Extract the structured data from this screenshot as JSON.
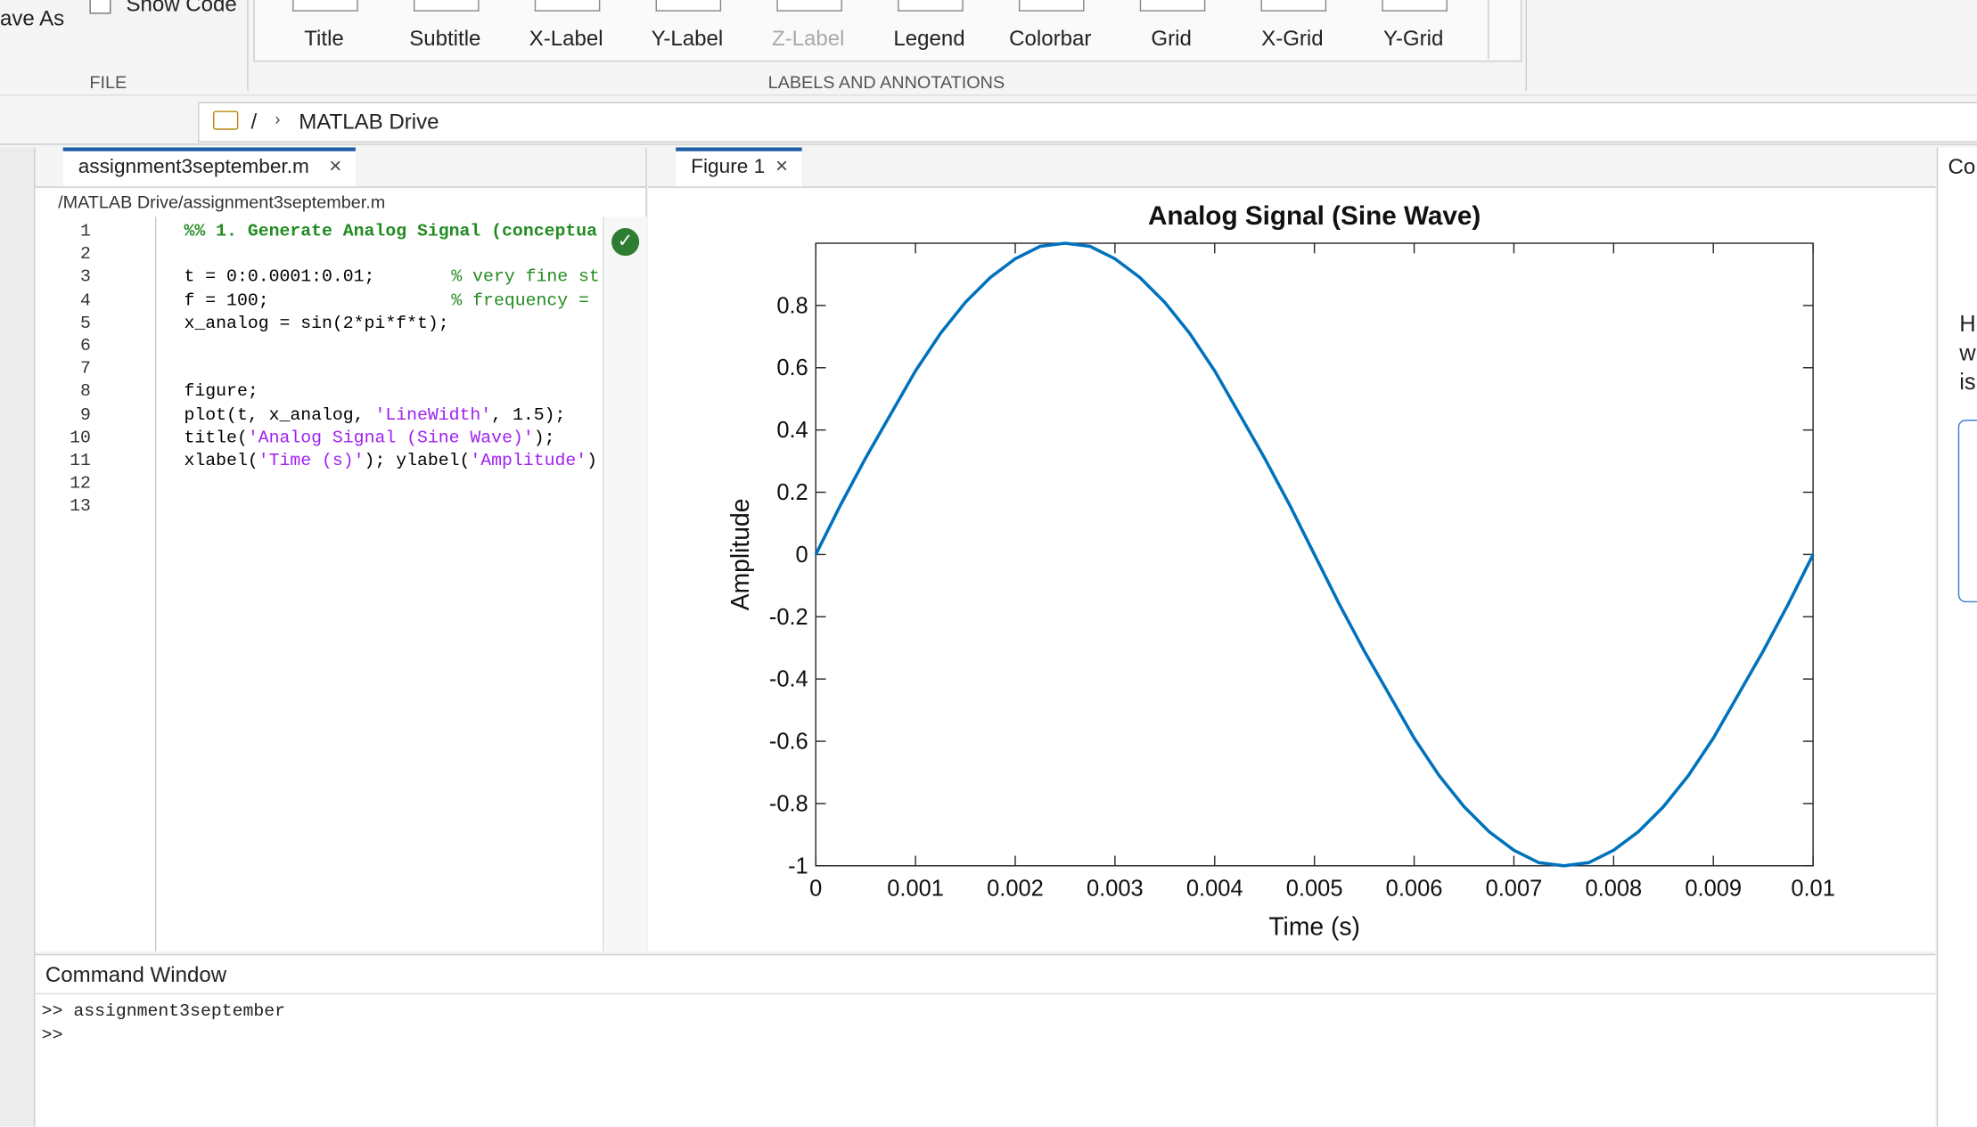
{
  "ribbon": {
    "save_as": "ave As",
    "show_code": "Show Code",
    "file_section": "FILE",
    "buttons": [
      "Title",
      "Subtitle",
      "X-Label",
      "Y-Label",
      "Z-Label",
      "Legend",
      "Colorbar",
      "Grid",
      "X-Grid",
      "Y-Grid"
    ],
    "labels_section": "LABELS AND ANNOTATIONS"
  },
  "address": {
    "separator": "/",
    "folder": "MATLAB Drive"
  },
  "editor": {
    "tab": "assignment3september.m",
    "path": "/MATLAB Drive/assignment3september.m",
    "lines": [
      {
        "n": 1,
        "segments": [
          "%% 1. Generate Analog Signal (conceptua"
        ]
      },
      {
        "n": 2,
        "segments": []
      },
      {
        "n": 3,
        "segments": [
          "t = 0:0.0001:0.01;",
          "% very fine st"
        ]
      },
      {
        "n": 4,
        "segments": [
          "f = 100;",
          "% frequency ="
        ]
      },
      {
        "n": 5,
        "segments": [
          "x_analog = sin(2*pi*f*t);"
        ]
      },
      {
        "n": 6,
        "segments": []
      },
      {
        "n": 7,
        "segments": []
      },
      {
        "n": 8,
        "segments": [
          "figure;"
        ]
      },
      {
        "n": 9,
        "segments": [
          "plot(t, x_analog, ",
          "'LineWidth'",
          ", 1.5);"
        ]
      },
      {
        "n": 10,
        "segments": [
          "title(",
          "'Analog Signal (Sine Wave)'",
          ");"
        ]
      },
      {
        "n": 11,
        "segments": [
          "xlabel(",
          "'Time (s)'",
          "); ylabel(",
          "'Amplitude'",
          ")"
        ]
      },
      {
        "n": 12,
        "segments": []
      },
      {
        "n": 13,
        "segments": []
      }
    ]
  },
  "figure": {
    "tab": "Figure 1"
  },
  "chart_data": {
    "type": "line",
    "title": "Analog Signal (Sine Wave)",
    "x_label": "Time (s)",
    "y_label": "Amplitude",
    "x": [
      0,
      0.00025,
      0.0005,
      0.00075,
      0.001,
      0.00125,
      0.0015,
      0.00175,
      0.002,
      0.00225,
      0.0025,
      0.00275,
      0.003,
      0.00325,
      0.0035,
      0.00375,
      0.004,
      0.00425,
      0.0045,
      0.00475,
      0.005,
      0.00525,
      0.0055,
      0.00575,
      0.006,
      0.00625,
      0.0065,
      0.00675,
      0.007,
      0.00725,
      0.0075,
      0.00775,
      0.008,
      0.00825,
      0.0085,
      0.00875,
      0.009,
      0.00925,
      0.0095,
      0.00975,
      0.01
    ],
    "series": [
      {
        "color": "#0072bd",
        "values": [
          0,
          0.16,
          0.31,
          0.45,
          0.59,
          0.71,
          0.81,
          0.89,
          0.95,
          0.99,
          1,
          0.99,
          0.95,
          0.89,
          0.81,
          0.71,
          0.59,
          0.45,
          0.31,
          0.16,
          0,
          -0.16,
          -0.31,
          -0.45,
          -0.59,
          -0.71,
          -0.81,
          -0.89,
          -0.95,
          -0.99,
          -1,
          -0.99,
          -0.95,
          -0.89,
          -0.81,
          -0.71,
          -0.59,
          -0.45,
          -0.31,
          -0.16,
          0
        ]
      }
    ],
    "xlim": [
      0,
      0.01
    ],
    "ylim": [
      -1,
      1
    ],
    "xticks": [
      0,
      0.001,
      0.002,
      0.003,
      0.004,
      0.005,
      0.006,
      0.007,
      0.008,
      0.009,
      0.01
    ],
    "yticks": [
      -1,
      -0.8,
      -0.6,
      -0.4,
      -0.2,
      0,
      0.2,
      0.4,
      0.6,
      0.8
    ]
  },
  "command_window": {
    "title": "Command Window",
    "lines": [
      ">> assignment3september",
      ">>"
    ]
  },
  "right_panel": {
    "tab": "Co",
    "text": [
      "H",
      "w",
      "is"
    ]
  }
}
